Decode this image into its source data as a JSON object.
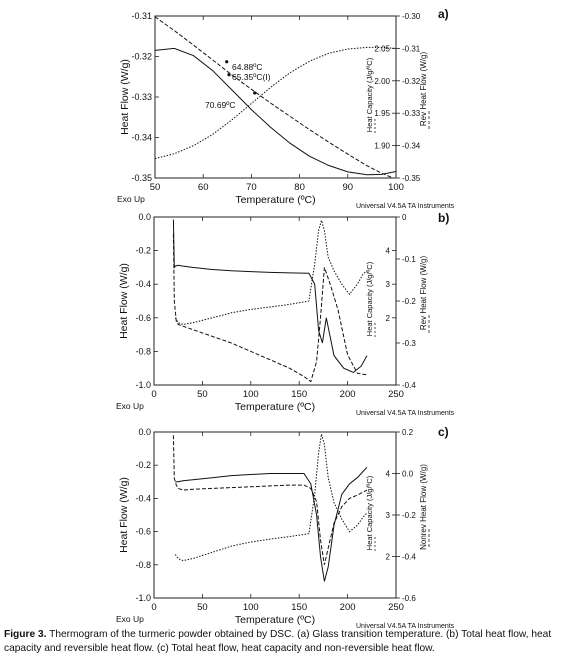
{
  "chart_data": [
    {
      "id": "a",
      "type": "line",
      "panel_label": "a)",
      "xlabel": "Temperature (ºC)",
      "ylabel": "Heat Flow (W/g)",
      "y2label": "Heat Capacity (J/g/ºC)",
      "y3label": "Rev Heat Flow (W/g)",
      "xlim": [
        50,
        100
      ],
      "ylim": [
        -0.35,
        -0.31
      ],
      "y2lim": [
        1.85,
        2.1
      ],
      "y3lim": [
        -0.35,
        -0.3
      ],
      "xticks": [
        "50",
        "60",
        "70",
        "80",
        "90",
        "100"
      ],
      "yticks": [
        "-0.35",
        "-0.34",
        "-0.33",
        "-0.32",
        "-0.31"
      ],
      "y2ticks": [
        "1.90",
        "1.95",
        "2.00",
        "2.05"
      ],
      "y3ticks": [
        "-0.35",
        "-0.34",
        "-0.33",
        "-0.32",
        "-0.31",
        "-0.30"
      ],
      "footer_left": "Exo Up",
      "footer_right": "Universal V4.5A TA Instruments",
      "annotations": [
        "64.88ºC",
        "65.35ºC(I)",
        "70.69ºC"
      ],
      "series": [
        {
          "axis": "y",
          "x": [
            50,
            54,
            58,
            62,
            66,
            70,
            74,
            78,
            82,
            86,
            90,
            94,
            97,
            100
          ],
          "values": [
            -0.3102,
            -0.3136,
            -0.3172,
            -0.3209,
            -0.3246,
            -0.3281,
            -0.3315,
            -0.3348,
            -0.338,
            -0.3411,
            -0.3441,
            -0.347,
            -0.3488,
            -0.3503
          ]
        },
        {
          "axis": "y",
          "x": [
            50,
            54,
            58,
            62,
            66,
            70,
            74,
            78,
            82,
            86,
            90,
            94,
            97,
            100
          ],
          "values": [
            -0.3185,
            -0.318,
            -0.3198,
            -0.3235,
            -0.3283,
            -0.3331,
            -0.3375,
            -0.3414,
            -0.3446,
            -0.3469,
            -0.3485,
            -0.3492,
            -0.3491,
            -0.3484
          ]
        },
        {
          "axis": "y3",
          "x": [
            50,
            54,
            58,
            62,
            66,
            70,
            74,
            78,
            82,
            86,
            90,
            94,
            97,
            100
          ],
          "values": [
            -0.344,
            -0.3425,
            -0.34,
            -0.3365,
            -0.332,
            -0.327,
            -0.322,
            -0.3175,
            -0.314,
            -0.3115,
            -0.3102,
            -0.3097,
            -0.3097,
            -0.31
          ]
        }
      ]
    },
    {
      "id": "b",
      "type": "line",
      "panel_label": "b)",
      "xlabel": "Temperature (ºC)",
      "ylabel": "Heat Flow (W/g)",
      "y2label": "Heat Capacity (J/g/ºC)",
      "y3label": "Rev Heat Flow (W/g)",
      "xlim": [
        0,
        250
      ],
      "ylim": [
        -1.0,
        0.0
      ],
      "y2lim": [
        0,
        5
      ],
      "y3lim": [
        -0.4,
        0.0
      ],
      "xticks": [
        "0",
        "50",
        "100",
        "150",
        "200",
        "250"
      ],
      "yticks": [
        "-1.0",
        "-0.8",
        "-0.6",
        "-0.4",
        "-0.2",
        "0.0"
      ],
      "y2ticks": [
        "2",
        "3",
        "4"
      ],
      "y3ticks": [
        "-0.4",
        "-0.3",
        "-0.2",
        "-0.1",
        "0"
      ],
      "footer_left": "Exo Up",
      "footer_right": "Universal V4.5A TA Instruments",
      "series": [
        {
          "axis": "y",
          "x": [
            20,
            21,
            23,
            25,
            30,
            40,
            60,
            80,
            100,
            120,
            140,
            155,
            162,
            168,
            172,
            176,
            182,
            190,
            200,
            210,
            220
          ],
          "values": [
            -0.1,
            -0.5,
            -0.62,
            -0.64,
            -0.65,
            -0.67,
            -0.71,
            -0.75,
            -0.8,
            -0.85,
            -0.9,
            -0.95,
            -0.98,
            -0.86,
            -0.6,
            -0.3,
            -0.4,
            -0.55,
            -0.82,
            -0.93,
            -0.94
          ]
        },
        {
          "axis": "y3",
          "x": [
            20,
            21,
            22,
            25,
            30,
            40,
            60,
            80,
            100,
            120,
            140,
            160,
            166,
            170,
            174,
            178,
            186,
            196,
            206,
            214,
            220
          ],
          "values": [
            -0.006,
            -0.12,
            -0.117,
            -0.115,
            -0.117,
            -0.12,
            -0.125,
            -0.128,
            -0.13,
            -0.132,
            -0.133,
            -0.134,
            -0.16,
            -0.27,
            -0.3,
            -0.24,
            -0.33,
            -0.36,
            -0.37,
            -0.355,
            -0.33
          ]
        },
        {
          "axis": "y2",
          "x": [
            22,
            25,
            30,
            40,
            60,
            80,
            100,
            120,
            140,
            160,
            166,
            170,
            173,
            176,
            180,
            186,
            194,
            202,
            210,
            216,
            220
          ],
          "values": [
            2.0,
            1.85,
            1.8,
            1.85,
            2.0,
            2.15,
            2.25,
            2.32,
            2.4,
            2.5,
            3.6,
            4.6,
            4.9,
            4.6,
            3.8,
            3.4,
            3.0,
            2.7,
            3.0,
            3.3,
            3.4
          ]
        }
      ]
    },
    {
      "id": "c",
      "type": "line",
      "panel_label": "c)",
      "xlabel": "Temperature (ºC)",
      "ylabel": "Heat Flow (W/g)",
      "y2label": "Heat Capacity (J/g/ºC)",
      "y3label": "Nonrev Heat Flow (W/g)",
      "xlim": [
        0,
        250
      ],
      "ylim": [
        -1.0,
        0.0
      ],
      "y2lim": [
        1,
        5
      ],
      "y3lim": [
        -0.6,
        0.2
      ],
      "xticks": [
        "0",
        "50",
        "100",
        "150",
        "200",
        "250"
      ],
      "yticks": [
        "-1.0",
        "-0.8",
        "-0.6",
        "-0.4",
        "-0.2",
        "0.0"
      ],
      "y2ticks": [
        "2",
        "3",
        "4"
      ],
      "y3ticks": [
        "-0.6",
        "-0.4",
        "-0.2",
        "0.0",
        "0.2"
      ],
      "footer_left": "Exo Up",
      "footer_right": "Universal V4.5A TA Instruments",
      "series": [
        {
          "axis": "y",
          "x": [
            20,
            21,
            23,
            25,
            30,
            40,
            60,
            80,
            100,
            120,
            140,
            155,
            162,
            168,
            172,
            176,
            180,
            186,
            194,
            202,
            210,
            220
          ],
          "values": [
            -0.02,
            -0.28,
            -0.32,
            -0.34,
            -0.35,
            -0.345,
            -0.34,
            -0.335,
            -0.33,
            -0.325,
            -0.32,
            -0.32,
            -0.34,
            -0.42,
            -0.65,
            -0.8,
            -0.7,
            -0.55,
            -0.45,
            -0.4,
            -0.38,
            -0.35
          ]
        },
        {
          "axis": "y3",
          "x": [
            22,
            25,
            30,
            40,
            60,
            80,
            100,
            120,
            140,
            155,
            162,
            168,
            172,
            176,
            180,
            186,
            194,
            202,
            210,
            216,
            220
          ],
          "values": [
            -0.04,
            -0.04,
            -0.035,
            -0.03,
            -0.02,
            -0.01,
            -0.005,
            0.0,
            0.0,
            0.0,
            -0.05,
            -0.2,
            -0.4,
            -0.52,
            -0.45,
            -0.25,
            -0.1,
            -0.05,
            -0.02,
            0.01,
            0.03
          ]
        },
        {
          "axis": "y2",
          "x": [
            22,
            25,
            30,
            40,
            60,
            80,
            100,
            120,
            140,
            160,
            166,
            170,
            173,
            176,
            180,
            186,
            194,
            202,
            210,
            216,
            220
          ],
          "values": [
            2.05,
            1.95,
            1.9,
            1.95,
            2.1,
            2.25,
            2.35,
            2.42,
            2.48,
            2.55,
            3.5,
            4.5,
            4.95,
            4.7,
            3.9,
            3.3,
            2.9,
            2.6,
            2.75,
            2.95,
            3.05
          ]
        }
      ]
    }
  ],
  "caption": {
    "bold": "Figure 3.",
    "text": " Thermogram of the turmeric powder obtained by DSC. (a) Glass transition temperature. (b) Total heat flow, heat capacity and reversible heat flow. (c) Total heat flow, heat capacity and non-reversible heat flow."
  }
}
